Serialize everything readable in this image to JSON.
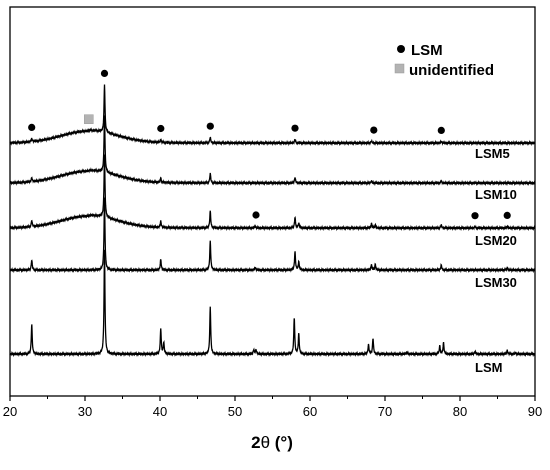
{
  "chart_data": {
    "type": "line",
    "xlabel_main": "2",
    "xlabel_theta": "θ",
    "xlabel_unit": " (°)",
    "xlim": [
      20,
      90
    ],
    "xticks": [
      20,
      30,
      40,
      50,
      60,
      70,
      80,
      90
    ],
    "yaxis_ticks": false,
    "grid": false,
    "legend": {
      "placement": "top-right",
      "entries": [
        {
          "label": "LSM",
          "marker": "circle",
          "color": "#000000"
        },
        {
          "label": "unidentified",
          "marker": "square",
          "color": "#b3b3b3"
        }
      ]
    },
    "series": [
      {
        "name": "LSM5",
        "background": "amorphous-hump",
        "peaks": [
          [
            22.9,
            0.5
          ],
          [
            32.6,
            7.6
          ],
          [
            40.1,
            0.45
          ],
          [
            46.7,
            0.9
          ],
          [
            58.0,
            0.6
          ],
          [
            68.2,
            0.3
          ],
          [
            77.5,
            0.25
          ]
        ]
      },
      {
        "name": "LSM10",
        "background": "amorphous-hump",
        "peaks": [
          [
            22.9,
            0.65
          ],
          [
            32.6,
            9.1
          ],
          [
            40.1,
            0.7
          ],
          [
            46.7,
            1.5
          ],
          [
            58.0,
            0.9
          ],
          [
            68.2,
            0.35
          ],
          [
            77.5,
            0.3
          ]
        ]
      },
      {
        "name": "LSM20",
        "background": "amorphous-hump",
        "peaks": [
          [
            22.9,
            1.0
          ],
          [
            32.6,
            10.0
          ],
          [
            40.1,
            1.0
          ],
          [
            46.7,
            2.7
          ],
          [
            52.7,
            0.3
          ],
          [
            58.0,
            1.7
          ],
          [
            58.5,
            0.8
          ],
          [
            68.2,
            0.7
          ],
          [
            68.7,
            0.5
          ],
          [
            77.5,
            0.5
          ],
          [
            82.0,
            0.2
          ],
          [
            86.3,
            0.25
          ]
        ]
      },
      {
        "name": "LSM30",
        "background": "flat",
        "peaks": [
          [
            22.9,
            1.6
          ],
          [
            32.6,
            11.4
          ],
          [
            40.1,
            1.7
          ],
          [
            46.7,
            4.6
          ],
          [
            52.7,
            0.4
          ],
          [
            58.0,
            2.9
          ],
          [
            58.5,
            1.3
          ],
          [
            68.2,
            0.8
          ],
          [
            68.7,
            0.9
          ],
          [
            77.5,
            0.8
          ],
          [
            86.3,
            0.35
          ]
        ]
      },
      {
        "name": "LSM",
        "background": "flat",
        "peaks": [
          [
            22.9,
            4.7
          ],
          [
            32.6,
            16.5
          ],
          [
            40.1,
            4.0
          ],
          [
            40.5,
            1.8
          ],
          [
            46.7,
            7.5
          ],
          [
            52.5,
            0.7
          ],
          [
            52.8,
            0.7
          ],
          [
            57.9,
            5.8
          ],
          [
            58.5,
            3.2
          ],
          [
            67.8,
            1.5
          ],
          [
            68.4,
            2.5
          ],
          [
            72.9,
            0.3
          ],
          [
            77.3,
            1.3
          ],
          [
            77.8,
            1.8
          ],
          [
            82.0,
            0.4
          ],
          [
            86.3,
            0.6
          ],
          [
            87.4,
            0.25
          ]
        ]
      }
    ],
    "marker_annotations": [
      {
        "symbol": "circle",
        "x": 22.9,
        "above": "LSM5"
      },
      {
        "symbol": "circle",
        "x": 32.6,
        "above": "LSM5"
      },
      {
        "symbol": "circle",
        "x": 40.1,
        "above": "LSM5"
      },
      {
        "symbol": "circle",
        "x": 46.7,
        "above": "LSM5"
      },
      {
        "symbol": "circle",
        "x": 58.0,
        "above": "LSM5"
      },
      {
        "symbol": "circle",
        "x": 68.5,
        "above": "LSM5"
      },
      {
        "symbol": "circle",
        "x": 77.5,
        "above": "LSM5"
      },
      {
        "symbol": "circle",
        "x": 52.8,
        "above": "LSM20"
      },
      {
        "symbol": "circle",
        "x": 82.0,
        "above": "LSM20"
      },
      {
        "symbol": "circle",
        "x": 86.3,
        "above": "LSM20"
      },
      {
        "symbol": "square",
        "x": 30.5,
        "above": "LSM5"
      }
    ]
  }
}
